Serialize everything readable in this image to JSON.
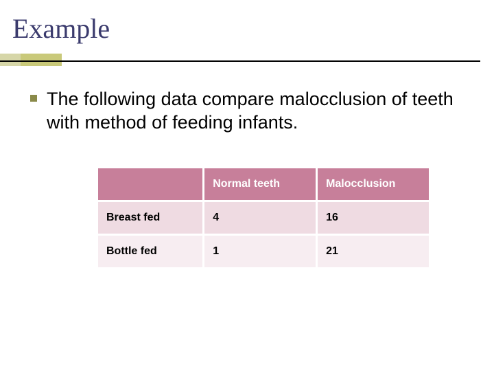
{
  "title": "Example",
  "body_text": "The following data compare malocclusion of teeth with method of feeding infants.",
  "colors": {
    "title_color": "#3b3b6d",
    "accent_light": "#d6d6a8",
    "accent_dark": "#c9c97a",
    "bullet": "#8a8a4a",
    "rule": "#000000",
    "header_bg": "#c77f9a",
    "header_fg": "#ffffff",
    "row1_bg": "#efdbe2",
    "row2_bg": "#f7edf1",
    "cell_border": "#ffffff"
  },
  "table": {
    "type": "table",
    "columns": [
      "",
      "Normal teeth",
      "Malocclusion"
    ],
    "rows": [
      [
        "Breast fed",
        "4",
        "16"
      ],
      [
        "Bottle fed",
        "1",
        "21"
      ]
    ],
    "header_fontsize": 16,
    "cell_fontsize": 16,
    "font_weight": "bold"
  }
}
